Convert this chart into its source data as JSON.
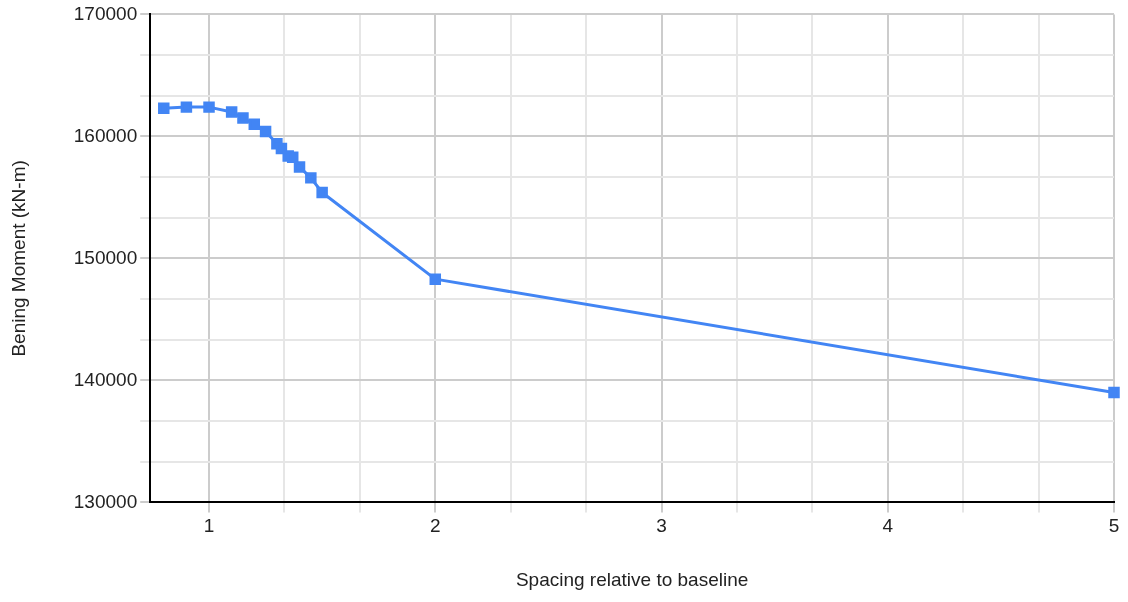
{
  "chart_data": {
    "type": "line",
    "xlabel": "Spacing relative to baseline",
    "ylabel": "Bening Moment (kN-m)",
    "x": [
      0.8,
      0.9,
      1,
      1.1,
      1.15,
      1.2,
      1.25,
      1.3,
      1.32,
      1.35,
      1.37,
      1.4,
      1.45,
      1.5,
      2,
      5
    ],
    "series": [
      {
        "color": "#4285f4",
        "values": [
          162300,
          162400,
          162400,
          162000,
          161500,
          161000,
          160400,
          159400,
          159000,
          158400,
          158300,
          157500,
          156600,
          155400,
          148300,
          139000
        ]
      }
    ],
    "xlim": [
      0.74,
      5
    ],
    "xticks": [
      1,
      {
        "value": 1.333,
        "label": null
      },
      {
        "value": 1.667,
        "label": null
      },
      2,
      {
        "value": 2.333,
        "label": null
      },
      {
        "value": 2.667,
        "label": null
      },
      3,
      {
        "value": 3.333,
        "label": null
      },
      {
        "value": 3.667,
        "label": null
      },
      4,
      {
        "value": 4.333,
        "label": null
      },
      {
        "value": 4.667,
        "label": null
      },
      5
    ],
    "ylim": [
      130000,
      170000
    ],
    "yticks": [
      130000,
      {
        "value": 133333,
        "label": null
      },
      {
        "value": 136667,
        "label": null
      },
      140000,
      {
        "value": 143333,
        "label": null
      },
      {
        "value": 146667,
        "label": null
      },
      150000,
      {
        "value": 153333,
        "label": null
      },
      {
        "value": 156667,
        "label": null
      },
      160000,
      {
        "value": 163333,
        "label": null
      },
      {
        "value": 166667,
        "label": null
      },
      170000
    ],
    "grid": true,
    "legend": false,
    "marker": "square",
    "line_style": "solid"
  }
}
